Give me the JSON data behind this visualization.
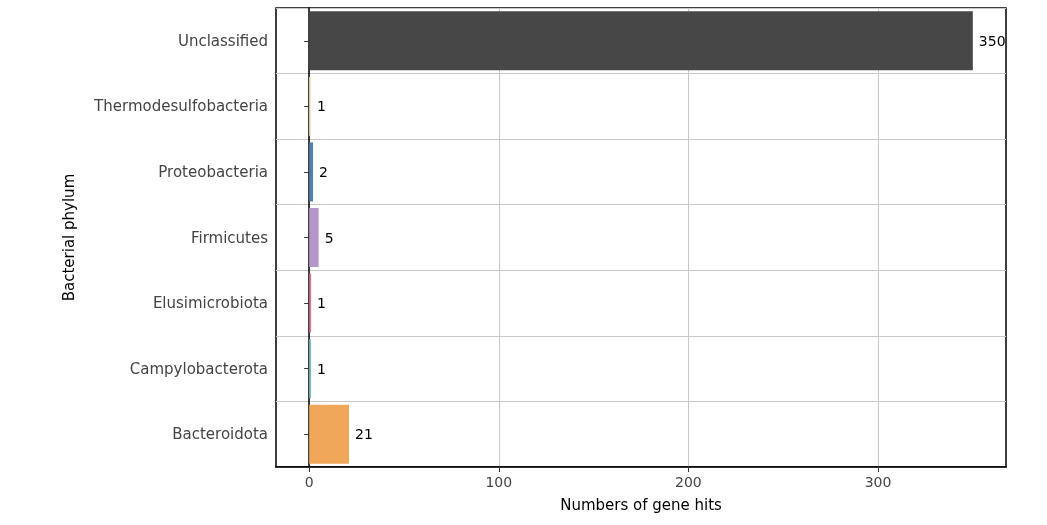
{
  "chart_data": {
    "type": "bar",
    "orientation": "horizontal",
    "xlabel": "Numbers of gene hits",
    "ylabel": "Bacterial phylum",
    "categories": [
      "Unclassified",
      "Thermodesulfobacteria",
      "Proteobacteria",
      "Firmicutes",
      "Elusimicrobiota",
      "Campylobacterota",
      "Bacteroidota"
    ],
    "values": [
      350,
      1,
      2,
      5,
      1,
      1,
      21
    ],
    "colors": [
      "#474747",
      "#f3e6c8",
      "#4e7fb0",
      "#b596c8",
      "#e06e88",
      "#7cc1bd",
      "#f0a75a"
    ],
    "xlim": [
      -17.5,
      367.5
    ],
    "xticks": [
      0,
      100,
      200,
      300
    ],
    "grid": true,
    "data_labels": true
  }
}
